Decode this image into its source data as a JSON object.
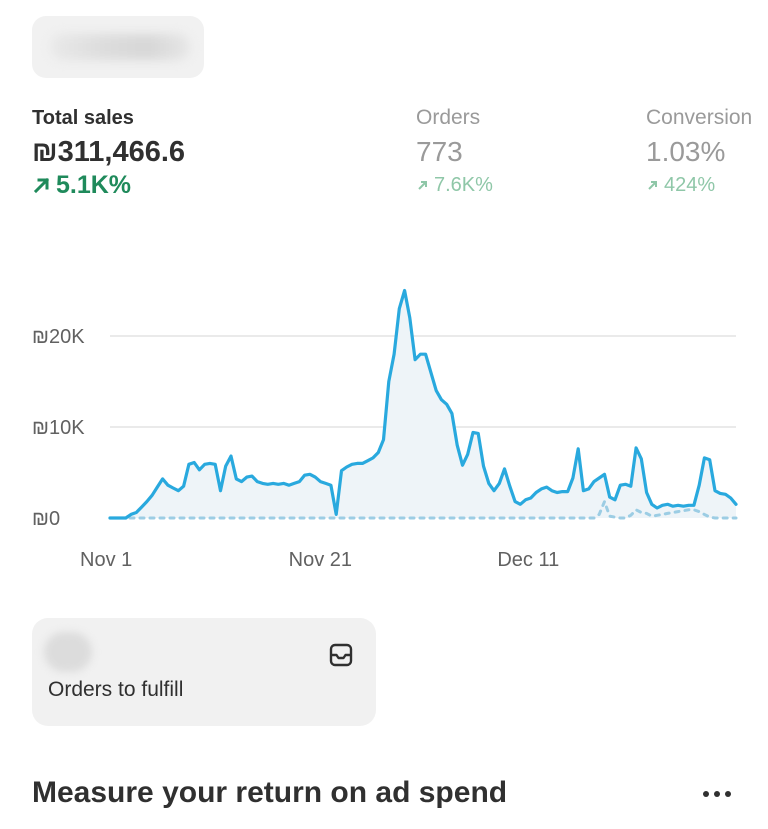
{
  "metrics": {
    "total_sales": {
      "label": "Total sales",
      "value": "₪311,466.6",
      "delta": "5.1K%"
    },
    "orders": {
      "label": "Orders",
      "value": "773",
      "delta": "7.6K%"
    },
    "conversion": {
      "label": "Conversion",
      "value": "1.03%",
      "delta": "424%"
    }
  },
  "chart_data": {
    "type": "line",
    "y_ticks": [
      "₪20K",
      "₪10K",
      "₪0"
    ],
    "x_ticks": [
      "Nov 1",
      "Nov 21",
      "Dec 11"
    ],
    "ylim": [
      0,
      26000
    ],
    "grid": true,
    "series": [
      {
        "color": "#29a9de",
        "style": "solid",
        "values": [
          0,
          0,
          0,
          0,
          400,
          600,
          1200,
          1800,
          2500,
          3400,
          4300,
          3600,
          3300,
          3000,
          3500,
          5900,
          6100,
          5300,
          5900,
          6000,
          5900,
          3000,
          5700,
          6800,
          4300,
          4000,
          4500,
          4600,
          4000,
          3800,
          3700,
          3800,
          3700,
          3800,
          3600,
          3800,
          4000,
          4700,
          4800,
          4500,
          4000,
          3800,
          3600,
          400,
          5200,
          5600,
          5900,
          6000,
          6000,
          6300,
          6600,
          7200,
          8600,
          15000,
          18000,
          23000,
          25000,
          22000,
          17400,
          18000,
          18000,
          16000,
          14000,
          13000,
          12500,
          11500,
          8000,
          5800,
          7000,
          9400,
          9300,
          5700,
          3800,
          3000,
          3800,
          5400,
          3500,
          1800,
          1500,
          2000,
          2200,
          2800,
          3200,
          3400,
          3000,
          2800,
          2900,
          2900,
          4400,
          7600,
          3000,
          3200,
          4000,
          4400,
          4800,
          2300,
          2000,
          3600,
          3700,
          3500,
          7700,
          6500,
          2800,
          1500,
          1100,
          1400,
          1500,
          1300,
          1400,
          1300,
          1400,
          1400,
          3600,
          6600,
          6400,
          3000,
          2700,
          2600,
          2200,
          1500
        ]
      },
      {
        "color": "#9ccde4",
        "style": "dotted",
        "values": [
          0,
          0,
          0,
          0,
          0,
          0,
          0,
          0,
          0,
          0,
          0,
          0,
          0,
          0,
          0,
          0,
          0,
          0,
          0,
          0,
          0,
          0,
          0,
          0,
          0,
          0,
          0,
          0,
          0,
          0,
          0,
          0,
          0,
          0,
          0,
          0,
          0,
          0,
          0,
          0,
          0,
          0,
          0,
          0,
          0,
          0,
          0,
          0,
          0,
          0,
          0,
          0,
          0,
          0,
          0,
          0,
          0,
          0,
          0,
          0,
          0,
          0,
          0,
          0,
          0,
          0,
          0,
          0,
          0,
          0,
          0,
          0,
          0,
          0,
          0,
          0,
          0,
          0,
          0,
          0,
          0,
          0,
          0,
          0,
          0,
          0,
          0,
          0,
          0,
          0,
          0,
          0,
          0,
          400,
          1800,
          200,
          100,
          0,
          0,
          300,
          900,
          600,
          500,
          200,
          300,
          400,
          500,
          600,
          700,
          800,
          900,
          900,
          700,
          400,
          100,
          0,
          0,
          0,
          0,
          0
        ]
      }
    ]
  },
  "fulfill_card": {
    "label": "Orders to fulfill",
    "icon": "inbox-icon"
  },
  "section": {
    "title": "Measure your return on ad spend",
    "more_icon": "ellipsis-icon"
  }
}
